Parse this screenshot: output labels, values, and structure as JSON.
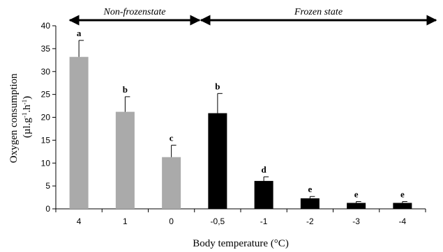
{
  "chart_data": {
    "type": "bar",
    "xlabel": "Body temperature (°C)",
    "ylabel_line1": "Oxygen consumption",
    "ylabel_line2_parts": [
      "(µl.g",
      "-1",
      ".h",
      "-1",
      ")"
    ],
    "ylim": [
      0,
      40
    ],
    "yticks": [
      0,
      5,
      10,
      15,
      20,
      25,
      30,
      35,
      40
    ],
    "categories": [
      "4",
      "1",
      "0",
      "-0,5",
      "-1",
      "-2",
      "-3",
      "-4"
    ],
    "values": [
      33.2,
      21.2,
      11.3,
      20.9,
      6.1,
      2.3,
      1.3,
      1.3
    ],
    "errors": [
      3.6,
      3.3,
      2.6,
      4.3,
      0.9,
      0.4,
      0.3,
      0.3
    ],
    "significance": [
      "a",
      "b",
      "c",
      "b",
      "d",
      "e",
      "e",
      "e"
    ],
    "bar_colors": [
      "#aaaaaa",
      "#aaaaaa",
      "#aaaaaa",
      "#000000",
      "#000000",
      "#000000",
      "#000000",
      "#000000"
    ],
    "states": [
      {
        "label": "Non-frozenstate",
        "from_index": 0,
        "to_index": 2
      },
      {
        "label": "Frozen state",
        "from_index": 3,
        "to_index": 7
      }
    ],
    "grid": false,
    "legend": "none"
  }
}
